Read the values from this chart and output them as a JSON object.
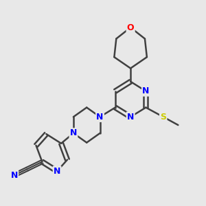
{
  "background_color": "#e8e8e8",
  "atom_colors": {
    "C": "#404040",
    "N": "#0000ff",
    "O": "#ff0000",
    "S": "#cccc00",
    "H": "#404040"
  },
  "bond_color": "#404040",
  "line_width": 1.8,
  "figsize": [
    3.0,
    3.0
  ],
  "dpi": 100
}
